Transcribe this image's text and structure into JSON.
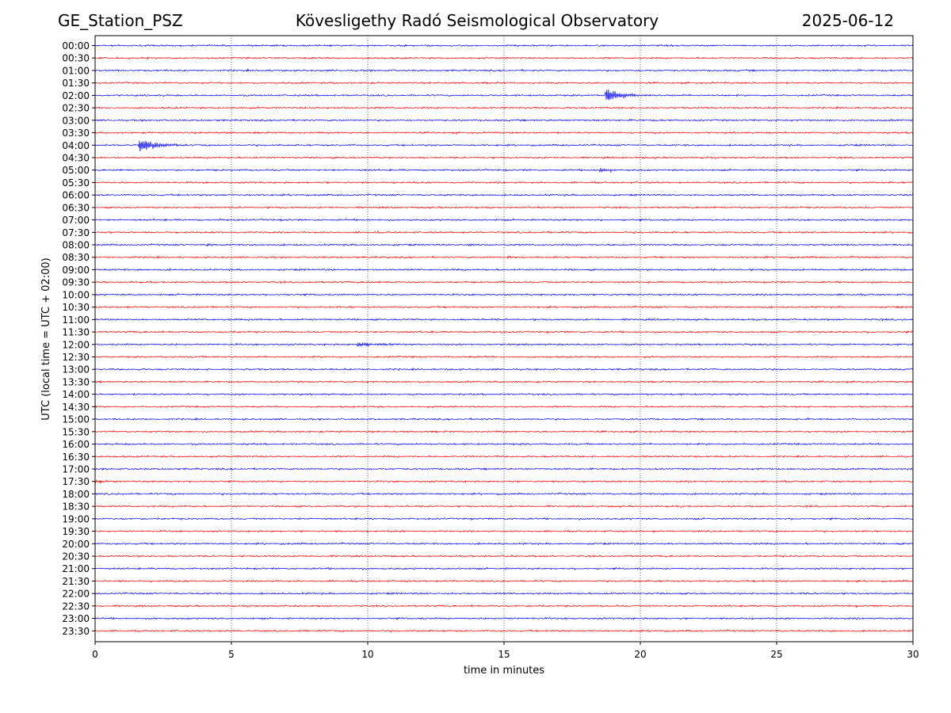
{
  "header": {
    "station": "GE_Station_PSZ",
    "observatory": "Kövesligethy Radó Seismological Observatory",
    "date": "2025-06-12"
  },
  "chart_data": {
    "type": "line",
    "title": "Kövesligethy Radó Seismological Observatory",
    "xlabel": "time in minutes",
    "ylabel": "UTC (local time = UTC + 02:00)",
    "xlim": [
      0,
      30
    ],
    "xticks": [
      0,
      5,
      10,
      15,
      20,
      25,
      30
    ],
    "grid": "vertical dotted lines at x ticks",
    "colors": [
      "#0000ff",
      "#ff0000"
    ],
    "row_labels": [
      "00:00",
      "00:30",
      "01:00",
      "01:30",
      "02:00",
      "02:30",
      "03:00",
      "03:30",
      "04:00",
      "04:30",
      "05:00",
      "05:30",
      "06:00",
      "06:30",
      "07:00",
      "07:30",
      "08:00",
      "08:30",
      "09:00",
      "09:30",
      "10:00",
      "10:30",
      "11:00",
      "11:30",
      "12:00",
      "12:30",
      "13:00",
      "13:30",
      "14:00",
      "14:30",
      "15:00",
      "15:30",
      "16:00",
      "16:30",
      "17:00",
      "17:30",
      "18:00",
      "18:30",
      "19:00",
      "19:30",
      "20:00",
      "20:30",
      "21:00",
      "21:30",
      "22:00",
      "22:30",
      "23:00",
      "23:30"
    ],
    "events": [
      {
        "row": "02:00",
        "start_min": 18.7,
        "peak_amplitude": 10,
        "duration_min": 1.8
      },
      {
        "row": "04:00",
        "start_min": 1.6,
        "peak_amplitude": 10,
        "duration_min": 1.9
      },
      {
        "row": "05:00",
        "start_min": 18.5,
        "peak_amplitude": 3,
        "duration_min": 1.2
      },
      {
        "row": "08:00",
        "start_min": 4.1,
        "peak_amplitude": 2,
        "duration_min": 0.6
      },
      {
        "row": "08:00",
        "start_min": 13.7,
        "peak_amplitude": 2,
        "duration_min": 0.5
      },
      {
        "row": "08:30",
        "start_min": 15.1,
        "peak_amplitude": 2.5,
        "duration_min": 0.4
      },
      {
        "row": "12:00",
        "start_min": 9.6,
        "peak_amplitude": 3,
        "duration_min": 2.8
      },
      {
        "row": "17:00",
        "start_min": 29.8,
        "peak_amplitude": 1.5,
        "duration_min": 0.2
      },
      {
        "row": "17:30",
        "start_min": 0.0,
        "peak_amplitude": 2.5,
        "duration_min": 1.0
      }
    ]
  }
}
